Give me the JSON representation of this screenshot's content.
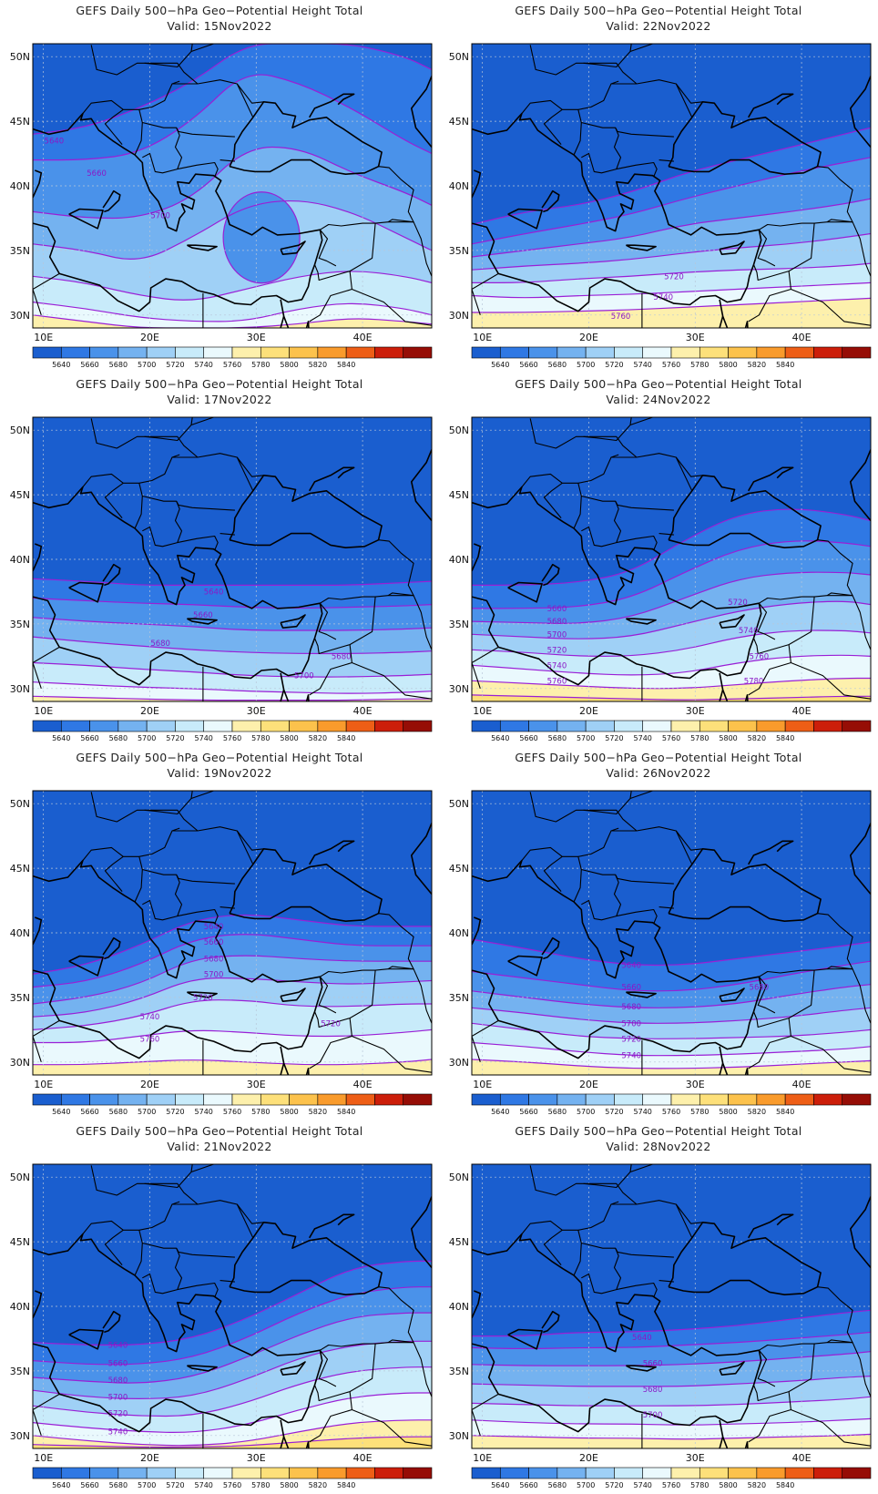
{
  "levels": [
    5640,
    5660,
    5680,
    5700,
    5720,
    5740,
    5760,
    5780,
    5800,
    5820,
    5840
  ],
  "colors": [
    "#1a5ecf",
    "#2f78e4",
    "#4a92ea",
    "#74b2f0",
    "#9fd0f6",
    "#c8ebfa",
    "#eaf9fd",
    "#fdf0ac",
    "#fde07a",
    "#fcc24c",
    "#f99b2c",
    "#ee5e16",
    "#cc1e0a",
    "#960d06"
  ],
  "contour_color": "#9a1fd6",
  "x_ticks": [
    "10E",
    "20E",
    "30E",
    "40E"
  ],
  "y_ticks": [
    "50N",
    "45N",
    "40N",
    "35N",
    "30N"
  ],
  "panels": [
    {
      "title": "GEFS Daily 500−hPa Geo−Potential Height Total",
      "valid": "Valid:  15Nov2022",
      "contour_labels": [
        "5640",
        "5660",
        "5700"
      ]
    },
    {
      "title": "GEFS Daily 500−hPa Geo−Potential Height Total",
      "valid": "Valid:  22Nov2022",
      "contour_labels": [
        "5720",
        "5740",
        "5760"
      ]
    },
    {
      "title": "GEFS Daily 500−hPa Geo−Potential Height Total",
      "valid": "Valid:  17Nov2022",
      "contour_labels": [
        "5640",
        "5660",
        "5680",
        "5680",
        "5700"
      ]
    },
    {
      "title": "GEFS Daily 500−hPa Geo−Potential Height Total",
      "valid": "Valid:  24Nov2022",
      "contour_labels": [
        "5660",
        "5680",
        "5700",
        "5720",
        "5740",
        "5760",
        "5720",
        "5740",
        "5760",
        "5780"
      ]
    },
    {
      "title": "GEFS Daily 500−hPa Geo−Potential Height Total",
      "valid": "Valid:  19Nov2022",
      "contour_labels": [
        "5640",
        "5660",
        "5680",
        "5700",
        "5720",
        "5740",
        "5760",
        "5720"
      ]
    },
    {
      "title": "GEFS Daily 500−hPa Geo−Potential Height Total",
      "valid": "Valid:  26Nov2022",
      "contour_labels": [
        "5640",
        "5660",
        "5680",
        "5700",
        "5720",
        "5740",
        "5680"
      ]
    },
    {
      "title": "GEFS Daily 500−hPa Geo−Potential Height Total",
      "valid": "Valid:  21Nov2022",
      "contour_labels": [
        "5640",
        "5660",
        "5680",
        "5700",
        "5720",
        "5740"
      ]
    },
    {
      "title": "GEFS Daily 500−hPa Geo−Potential Height Total",
      "valid": "Valid:  28Nov2022",
      "contour_labels": [
        "5640",
        "5660",
        "5680",
        "5700"
      ]
    }
  ]
}
